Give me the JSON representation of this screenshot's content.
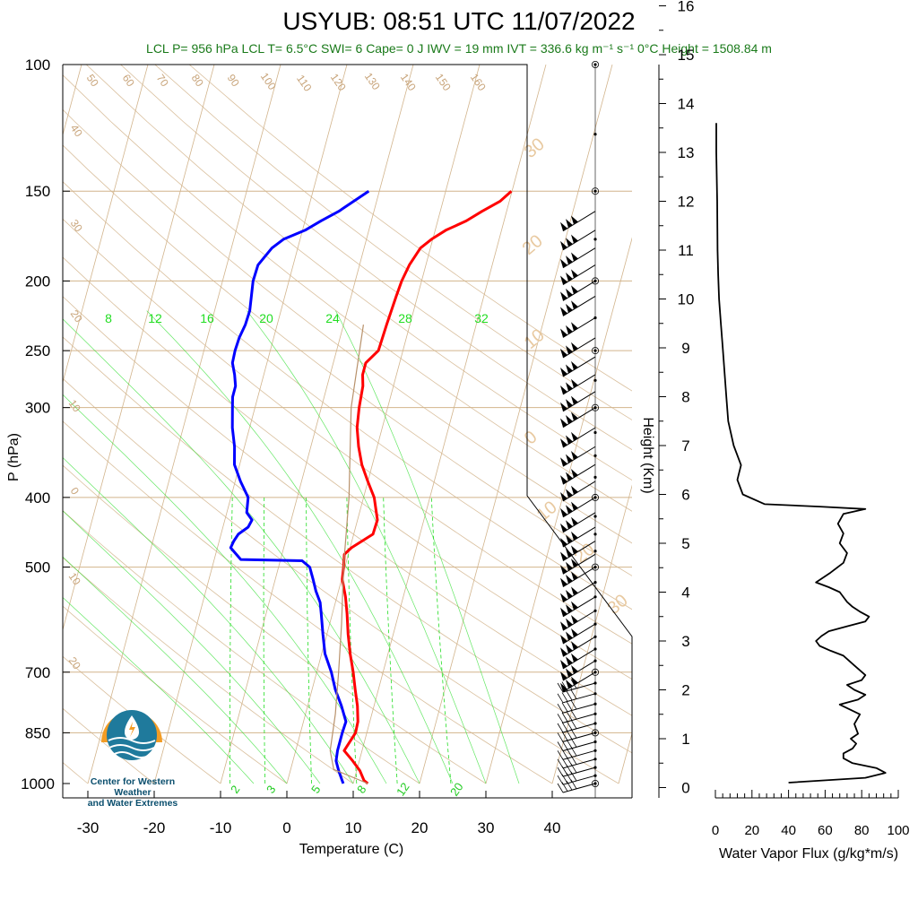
{
  "header": {
    "title": "USYUB: 08:51 UTC 11/07/2022",
    "subtitle": "LCL P= 956 hPa  LCL T= 6.5°C  SWI= 6  Cape= 0 J  IWV = 19 mm  IVT = 336.6 kg m⁻¹ s⁻¹  0°C Height = 1508.84 m"
  },
  "logo": {
    "line1": "Center for Western Weather",
    "line2": "and Water Extremes",
    "colors": {
      "sun": "#f39c24",
      "water": "#1f7a9c"
    }
  },
  "chart_data": [
    {
      "type": "line",
      "subtype": "skew-t",
      "xlabel": "Temperature (C)",
      "ylabel": "P (hPa)",
      "xlim": [
        -33,
        52
      ],
      "ylim": [
        1000,
        100
      ],
      "y_scale": "log",
      "x_ticks": [
        "-30",
        "-20",
        "-10",
        "0",
        "10",
        "20",
        "30",
        "40"
      ],
      "y_ticks": [
        "100",
        "150",
        "200",
        "250",
        "300",
        "400",
        "500",
        "700",
        "850",
        "1000"
      ],
      "y_tick_values": [
        100,
        150,
        200,
        250,
        300,
        400,
        500,
        700,
        850,
        1000
      ],
      "colors": {
        "temperature": "#ff0000",
        "dewpoint": "#0000ff",
        "background_lines": "#d2b48c",
        "mixing_ratio": "#22dd22",
        "wind": "#000000"
      },
      "series": [
        {
          "data_key": "temperature",
          "pressure": [
            1000,
            990,
            960,
            930,
            900,
            850,
            820,
            780,
            740,
            700,
            660,
            620,
            580,
            550,
            520,
            500,
            480,
            470,
            450,
            430,
            400,
            380,
            360,
            340,
            320,
            300,
            280,
            270,
            260,
            250,
            230,
            210,
            200,
            190,
            180,
            175,
            170,
            165,
            160,
            155,
            150
          ],
          "temp": [
            12.2,
            11.5,
            10.5,
            9.0,
            7.3,
            8.3,
            8.2,
            7.5,
            6.5,
            5.5,
            4.3,
            3.2,
            2.2,
            1.3,
            0.1,
            -0.2,
            -0.6,
            0.2,
            2.9,
            3.0,
            1.6,
            0.0,
            -1.6,
            -2.8,
            -3.8,
            -4.3,
            -4.6,
            -5.1,
            -5.1,
            -3.7,
            -3.5,
            -3.2,
            -3.0,
            -2.5,
            -1.5,
            -0.2,
            1.6,
            4.3,
            6.3,
            8.6,
            9.9
          ]
        },
        {
          "data_key": "dewpoint",
          "pressure": [
            1000,
            990,
            960,
            930,
            900,
            850,
            820,
            780,
            740,
            700,
            660,
            620,
            580,
            560,
            540,
            520,
            500,
            490,
            488,
            470,
            460,
            450,
            440,
            430,
            420,
            400,
            380,
            360,
            340,
            320,
            300,
            290,
            280,
            270,
            260,
            250,
            240,
            230,
            220,
            200,
            190,
            180,
            175,
            170,
            165,
            160,
            150
          ],
          "temp": [
            8.5,
            8.2,
            7.3,
            6.5,
            6.3,
            6.3,
            6.4,
            5.1,
            3.5,
            2.2,
            0.5,
            -0.6,
            -1.7,
            -2.3,
            -3.4,
            -4.3,
            -5.3,
            -6.7,
            -16.0,
            -18.0,
            -17.8,
            -17.4,
            -16.2,
            -15.9,
            -17.0,
            -17.4,
            -19.2,
            -20.8,
            -21.5,
            -22.6,
            -23.4,
            -23.8,
            -23.8,
            -24.4,
            -25.2,
            -25.3,
            -25.2,
            -24.8,
            -24.7,
            -25.4,
            -25.3,
            -23.9,
            -22.5,
            -19.6,
            -17.6,
            -15.3,
            -11.6
          ]
        },
        {
          "data_key": "parcel",
          "pressure": [
            1000,
            956,
            900,
            800,
            700,
            600,
            500,
            400,
            300,
            230
          ],
          "temp": [
            12.2,
            6.5,
            5.2,
            4.5,
            3.3,
            1.8,
            -0.2,
            -2.2,
            -5.5,
            -7.0
          ]
        }
      ],
      "wind_barb_pressures": [
        1000,
        975,
        950,
        925,
        900,
        875,
        850,
        825,
        800,
        775,
        750,
        725,
        700,
        675,
        650,
        625,
        600,
        575,
        550,
        525,
        500,
        480,
        460,
        440,
        420,
        400,
        380,
        360,
        340,
        320,
        300,
        285,
        270,
        255,
        240,
        225,
        210,
        200,
        190,
        180,
        170,
        160
      ],
      "mixing_ratio_labels": [
        "2",
        "3",
        "5",
        "8",
        "12",
        "20"
      ],
      "mixing_ratio_values": [
        2,
        3,
        5,
        8,
        12,
        20
      ],
      "theta_labels": [
        "30",
        "20",
        "10",
        "0",
        "10",
        "20",
        "30",
        "10",
        "0",
        "10",
        "20"
      ],
      "theta_values": [
        30,
        20,
        10,
        0,
        -10,
        -20,
        -30,
        -10,
        0,
        10,
        20
      ],
      "upper_labels": [
        "8",
        "12",
        "16",
        "20",
        "24",
        "28",
        "32"
      ],
      "upper_values": [
        8,
        12,
        16,
        20,
        24,
        28,
        32
      ],
      "top_labels": [
        "50",
        "60",
        "70",
        "80",
        "90",
        "100",
        "110",
        "120",
        "130",
        "140",
        "150",
        "160"
      ],
      "top_values": [
        50,
        60,
        70,
        80,
        90,
        100,
        110,
        120,
        130,
        140,
        150,
        160
      ],
      "left_labels": [
        "40",
        "30",
        "20",
        "10",
        "0",
        "10",
        "20"
      ],
      "left_values": [
        40,
        30,
        20,
        10,
        0,
        -10,
        -20
      ]
    },
    {
      "type": "line",
      "xlabel": "Water Vapor Flux (g/kg*m/s)",
      "ylabel": "Height (Km)",
      "xlim": [
        0,
        100
      ],
      "ylim": [
        0,
        16.2
      ],
      "x_ticks": [
        "0",
        "20",
        "40",
        "60",
        "80",
        "100"
      ],
      "x_tick_values": [
        0,
        20,
        40,
        60,
        80,
        100
      ],
      "y_ticks": [
        "0",
        "1",
        "2",
        "3",
        "4",
        "5",
        "6",
        "7",
        "8",
        "9",
        "10",
        "11",
        "12",
        "13",
        "14",
        "15",
        "16"
      ],
      "y_tick_values": [
        0,
        1,
        2,
        3,
        4,
        5,
        6,
        7,
        8,
        9,
        10,
        11,
        12,
        13,
        14,
        15,
        16
      ],
      "series": [
        {
          "data_key": "flux",
          "height": [
            0.1,
            0.2,
            0.3,
            0.4,
            0.5,
            0.6,
            0.7,
            0.8,
            0.9,
            1.0,
            1.1,
            1.3,
            1.5,
            1.7,
            1.8,
            1.9,
            2.0,
            2.1,
            2.2,
            2.3,
            2.5,
            2.7,
            2.8,
            2.9,
            3.0,
            3.1,
            3.2,
            3.3,
            3.4,
            3.5,
            3.6,
            3.7,
            3.8,
            3.9,
            4.0,
            4.1,
            4.2,
            4.4,
            4.6,
            4.8,
            5.0,
            5.2,
            5.4,
            5.6,
            5.7,
            5.75,
            5.8,
            6.0,
            6.3,
            6.6,
            7.0,
            7.5,
            8.0,
            8.5,
            9.0,
            9.5,
            10.0,
            10.5,
            11.0,
            12.0,
            13.0,
            13.6
          ],
          "flux": [
            40,
            82,
            93,
            88,
            75,
            70,
            70,
            75,
            77,
            74,
            78,
            76,
            79,
            68,
            78,
            82,
            76,
            72,
            80,
            82,
            76,
            70,
            63,
            57,
            55,
            58,
            62,
            72,
            82,
            84,
            79,
            75,
            72,
            70,
            68,
            62,
            55,
            63,
            70,
            72,
            68,
            70,
            67,
            70,
            82,
            57,
            27,
            15,
            12,
            14,
            10,
            7,
            6,
            5,
            4,
            3,
            2,
            1.5,
            1.2,
            1,
            0.5,
            0.5
          ]
        }
      ]
    }
  ]
}
